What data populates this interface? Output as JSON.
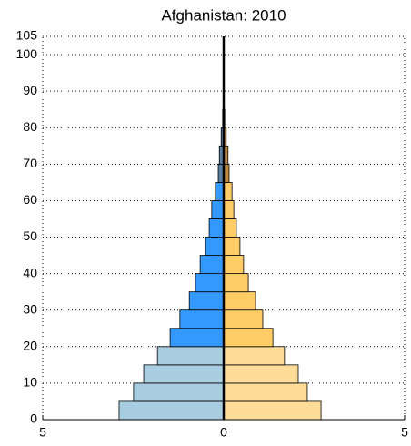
{
  "chart_data": {
    "type": "pyramid",
    "title": "Afghanistan: 2010",
    "age_bins": [
      0,
      5,
      10,
      15,
      20,
      25,
      30,
      35,
      40,
      45,
      50,
      55,
      60,
      65,
      70,
      75,
      80,
      85
    ],
    "series": [
      {
        "values": [
          -2.89,
          -2.49,
          -2.21,
          -1.83,
          -1.48,
          -1.21,
          -0.95,
          -0.78,
          -0.65,
          -0.5,
          -0.4,
          -0.33,
          -0.23,
          -0.15,
          -0.12,
          -0.07,
          -0.03
        ],
        "color": [
          "#a8cce0",
          "#a8cce0",
          "#a8cce0",
          "#a8cce0",
          "#3399ff",
          "#3399ff",
          "#3399ff",
          "#3399ff",
          "#3399ff",
          "#3399ff",
          "#3399ff",
          "#3399ff",
          "#3399ff",
          "#5a7fa0",
          "#5a7fa0",
          "#5a7fa0",
          "#5a7fa0"
        ]
      },
      {
        "values": [
          2.69,
          2.31,
          2.06,
          1.68,
          1.36,
          1.08,
          0.88,
          0.68,
          0.55,
          0.45,
          0.35,
          0.28,
          0.23,
          0.15,
          0.12,
          0.07,
          0.03
        ],
        "color": [
          "#ffdd99",
          "#ffdd99",
          "#ffdd99",
          "#ffdd99",
          "#ffcc66",
          "#ffcc66",
          "#ffcc66",
          "#ffcc66",
          "#ffcc66",
          "#ffcc66",
          "#ffcc66",
          "#ffcc66",
          "#ffcc66",
          "#c08a3a",
          "#c08a3a",
          "#c08a3a",
          "#c08a3a"
        ]
      }
    ],
    "xlim": [
      -5,
      5
    ],
    "xticks": [
      {
        "value": -5,
        "label": "5"
      },
      0,
      5
    ],
    "ylim": [
      0,
      105
    ],
    "yticks": [
      0,
      10,
      20,
      30,
      40,
      50,
      60,
      70,
      80,
      90,
      100,
      105
    ],
    "grid": true
  }
}
